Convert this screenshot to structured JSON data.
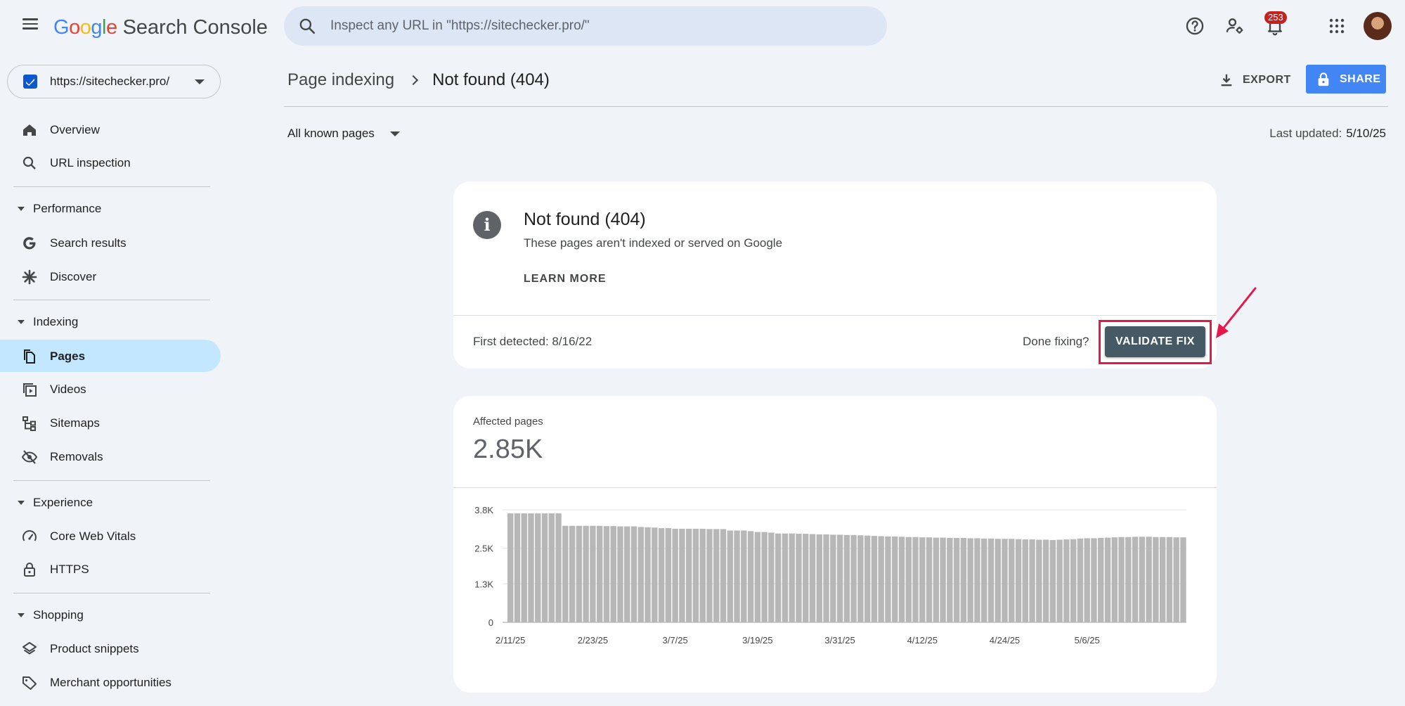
{
  "header": {
    "logo_google": "Google",
    "logo_product": "Search Console",
    "search_placeholder": "Inspect any URL in \"https://sitechecker.pro/\"",
    "notification_count": "253"
  },
  "property": {
    "url": "https://sitechecker.pro/"
  },
  "sidebar": {
    "items": [
      {
        "label": "Overview",
        "icon": "home-icon"
      },
      {
        "label": "URL inspection",
        "icon": "search-icon"
      },
      {
        "section": "Performance"
      },
      {
        "label": "Search results",
        "icon": "google-g-icon"
      },
      {
        "label": "Discover",
        "icon": "asterisk-icon"
      },
      {
        "section": "Indexing"
      },
      {
        "label": "Pages",
        "icon": "pages-icon",
        "active": true
      },
      {
        "label": "Videos",
        "icon": "video-icon"
      },
      {
        "label": "Sitemaps",
        "icon": "sitemap-icon"
      },
      {
        "label": "Removals",
        "icon": "eye-off-icon"
      },
      {
        "section": "Experience"
      },
      {
        "label": "Core Web Vitals",
        "icon": "gauge-icon"
      },
      {
        "label": "HTTPS",
        "icon": "lock-icon"
      },
      {
        "section": "Shopping"
      },
      {
        "label": "Product snippets",
        "icon": "layers-icon"
      },
      {
        "label": "Merchant opportunities",
        "icon": "tag-icon"
      }
    ]
  },
  "breadcrumb": {
    "parent": "Page indexing",
    "current": "Not found (404)"
  },
  "actions": {
    "export": "EXPORT",
    "share": "SHARE"
  },
  "filter": {
    "selected": "All known pages"
  },
  "updated": {
    "label": "Last updated:",
    "date": "5/10/25"
  },
  "issue": {
    "title": "Not found (404)",
    "description": "These pages aren't indexed or served on Google",
    "learn_more": "LEARN MORE",
    "first_detected": "First detected: 8/16/22",
    "done_fixing": "Done fixing?",
    "validate": "VALIDATE FIX",
    "highlight_color": "#e8174a"
  },
  "affected": {
    "label": "Affected pages",
    "value": "2.85K"
  },
  "chart_data": {
    "type": "bar",
    "ylim": [
      0,
      3800
    ],
    "y_ticks": [
      {
        "value": 0,
        "label": "0"
      },
      {
        "value": 1300,
        "label": "1.3K"
      },
      {
        "value": 2500,
        "label": "2.5K"
      },
      {
        "value": 3800,
        "label": "3.8K"
      }
    ],
    "x_tick_labels": [
      "2/11/25",
      "2/23/25",
      "3/7/25",
      "3/19/25",
      "3/31/25",
      "4/12/25",
      "4/24/25",
      "5/6/25"
    ],
    "x_tick_indices": [
      0,
      12,
      24,
      36,
      48,
      60,
      72,
      84
    ],
    "bar_color": "#b7b7b7",
    "values": [
      3680,
      3680,
      3680,
      3680,
      3680,
      3680,
      3680,
      3680,
      3260,
      3260,
      3260,
      3260,
      3260,
      3260,
      3250,
      3250,
      3240,
      3240,
      3240,
      3220,
      3210,
      3200,
      3180,
      3180,
      3160,
      3160,
      3160,
      3160,
      3160,
      3150,
      3150,
      3150,
      3100,
      3100,
      3100,
      3080,
      3050,
      3050,
      3030,
      3000,
      3000,
      3000,
      2990,
      2990,
      2980,
      2970,
      2970,
      2960,
      2960,
      2950,
      2950,
      2940,
      2930,
      2920,
      2910,
      2900,
      2900,
      2890,
      2880,
      2880,
      2870,
      2870,
      2860,
      2860,
      2850,
      2850,
      2850,
      2840,
      2840,
      2830,
      2830,
      2820,
      2820,
      2820,
      2810,
      2800,
      2800,
      2790,
      2790,
      2780,
      2790,
      2800,
      2810,
      2830,
      2840,
      2840,
      2850,
      2860,
      2870,
      2880,
      2880,
      2890,
      2890,
      2890,
      2880,
      2880,
      2880,
      2870,
      2870
    ]
  }
}
